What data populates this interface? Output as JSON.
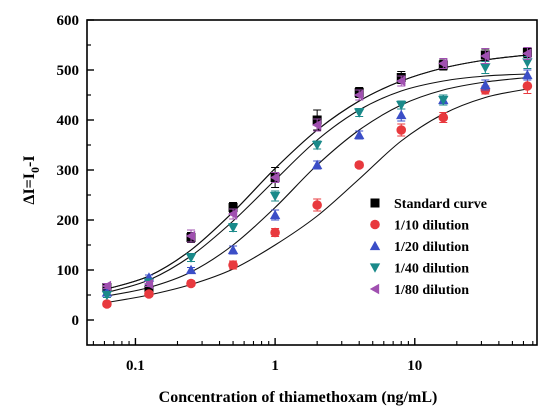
{
  "chart_data": {
    "type": "scatter",
    "xlabel": "Concentration of thiamethoxam (ng/mL)",
    "ylabel": "ΔI=I0-I",
    "ylabel_parts": {
      "prefix": "ΔI=I",
      "sub": "0",
      "suffix": "-I"
    },
    "x_scale": "log",
    "xlim": [
      0.045,
      75
    ],
    "ylim": [
      -50,
      600
    ],
    "x_ticks": [
      0.1,
      1,
      10
    ],
    "x_tick_labels": [
      "0.1",
      "1",
      "10"
    ],
    "y_ticks": [
      0,
      100,
      200,
      300,
      400,
      500,
      600
    ],
    "y_tick_labels": [
      "0",
      "100",
      "200",
      "300",
      "400",
      "500",
      "600"
    ],
    "x": [
      0.0625,
      0.125,
      0.25,
      0.5,
      1,
      2,
      4,
      8,
      16,
      32,
      64
    ],
    "legend_position": "right",
    "series": [
      {
        "name": "Standard curve",
        "marker": "square",
        "color": "#000000",
        "values": [
          65,
          60,
          165,
          225,
          285,
          400,
          455,
          485,
          510,
          530,
          535
        ],
        "errors": [
          5,
          5,
          10,
          10,
          20,
          20,
          10,
          12,
          10,
          12,
          10
        ],
        "fit": [
          62,
          88,
          140,
          216,
          303,
          380,
          438,
          478,
          504,
          520,
          530
        ]
      },
      {
        "name": "1/10 dilution",
        "marker": "circle",
        "color": "#e8393e",
        "values": [
          32,
          52,
          73,
          110,
          175,
          230,
          310,
          380,
          405,
          460,
          468
        ],
        "errors": [
          5,
          5,
          5,
          8,
          8,
          12,
          5,
          12,
          10,
          8,
          15
        ],
        "fit": [
          35,
          50,
          71,
          102,
          150,
          208,
          282,
          358,
          412,
          445,
          462
        ]
      },
      {
        "name": "1/20 dilution",
        "marker": "triangle-up",
        "color": "#3b4ec7",
        "values": [
          55,
          85,
          100,
          140,
          210,
          310,
          370,
          410,
          440,
          470,
          490
        ],
        "errors": [
          5,
          5,
          5,
          8,
          10,
          8,
          8,
          12,
          10,
          10,
          10
        ],
        "fit": [
          48,
          65,
          96,
          150,
          225,
          310,
          380,
          430,
          460,
          476,
          485
        ]
      },
      {
        "name": "1/40 dilution",
        "marker": "triangle-down",
        "color": "#1a8a8a",
        "values": [
          50,
          75,
          125,
          185,
          248,
          350,
          415,
          430,
          440,
          505,
          515
        ],
        "errors": [
          5,
          5,
          8,
          8,
          10,
          8,
          8,
          8,
          10,
          12,
          12
        ],
        "fit": [
          55,
          80,
          128,
          198,
          280,
          360,
          420,
          458,
          478,
          488,
          492
        ]
      },
      {
        "name": "1/80 dilution",
        "marker": "triangle-left",
        "color": "#a050b0",
        "values": [
          68,
          72,
          168,
          212,
          285,
          390,
          450,
          478,
          513,
          528,
          533
        ],
        "errors": [
          5,
          5,
          12,
          10,
          10,
          12,
          10,
          10,
          10,
          15,
          12
        ],
        "fit": [
          62,
          88,
          140,
          216,
          303,
          380,
          438,
          478,
          504,
          520,
          530
        ]
      }
    ]
  }
}
